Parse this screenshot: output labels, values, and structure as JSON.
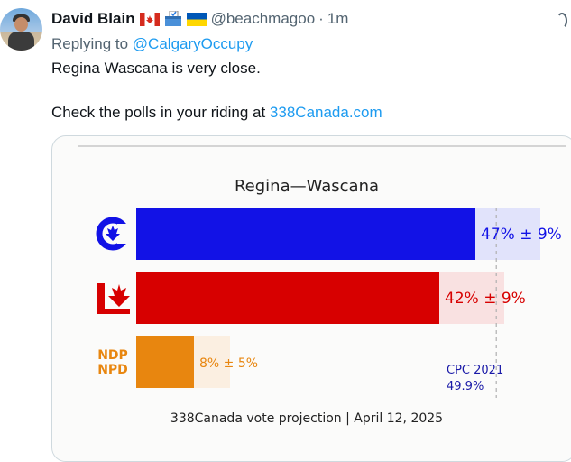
{
  "tweet": {
    "author_name": "David Blain",
    "author_handle": "@beachmagoo",
    "time": "1m",
    "separator": "·",
    "replying_prefix": "Replying to",
    "replying_to": "@CalgaryOccupy",
    "line1": "Regina Wascana is very close.",
    "line2_prefix": "Check the polls in your riding at",
    "line2_link": "338Canada.com",
    "icons": [
      "canada-flag-icon",
      "ballot-box-icon",
      "ukraine-flag-icon",
      "more-icon"
    ]
  },
  "chart_data": {
    "type": "bar",
    "title": "Regina—Wascana",
    "orientation": "horizontal",
    "categories": [
      "CPC",
      "LPC",
      "NDP"
    ],
    "series": [
      {
        "values": [
          47,
          42,
          8
        ]
      }
    ],
    "margins": [
      9,
      9,
      5
    ],
    "data_labels": [
      "47% ± 9%",
      "42% ± 9%",
      "8% ± 5%"
    ],
    "colors": [
      "#1212e6",
      "#d70000",
      "#e8860f"
    ],
    "light_colors": [
      "#e1e3fb",
      "#f9e1e1",
      "#fbefe1"
    ],
    "logo_labels": [
      "",
      "",
      "NDP\nNPD"
    ],
    "reference": {
      "label_line1": "CPC 2021",
      "label_line2": "49.9%",
      "value": 49.9
    },
    "footer": "338Canada vote projection | April 12, 2025",
    "xlim": [
      0,
      70
    ]
  }
}
